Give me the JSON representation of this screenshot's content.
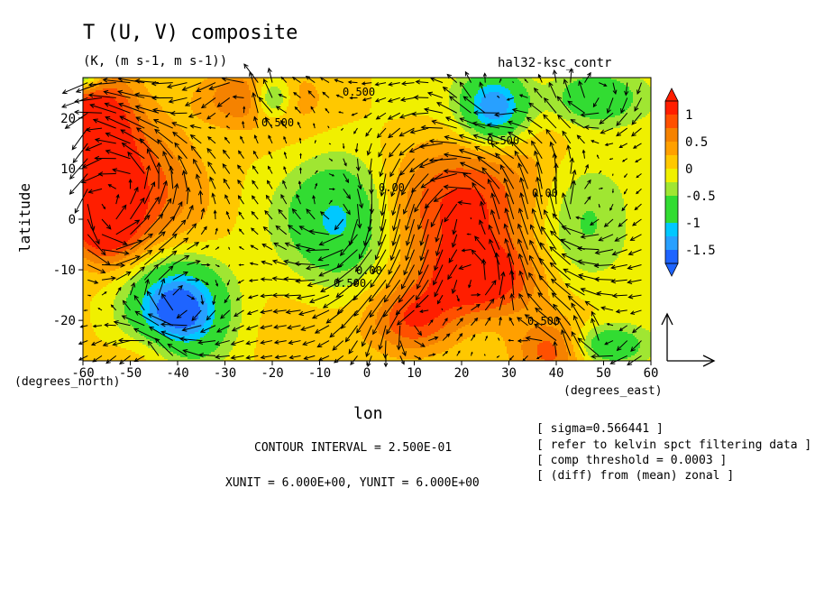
{
  "figure": {
    "title": "T (U, V) composite",
    "subtitle": "(K, (m s-1, m s-1))",
    "run_label": "hal32-ksc_contr",
    "contour_interval": "CONTOUR INTERVAL = 2.500E-01",
    "vector_units": "XUNIT = 6.000E+00, YUNIT = 6.000E+00",
    "notes": [
      "[ sigma=0.566441 ]",
      "[ refer to kelvin spct filtering data ]",
      "[ comp threshold = 0.0003 ]",
      "[ (diff) from (mean) zonal ]"
    ],
    "contour_labels": [
      "0.500",
      "0.500",
      "0.500",
      "0.00",
      "0.00",
      "0.00",
      "0.500",
      "0.500"
    ]
  },
  "chart_data": {
    "type": "heatmap",
    "title": "T (U, V) composite",
    "xlabel": "lon",
    "ylabel": "latitude",
    "x_units": "(degrees_east)",
    "y_units": "(degrees_north)",
    "xlim": [
      -60,
      60
    ],
    "ylim": [
      -28,
      28
    ],
    "xticks": [
      -60,
      -50,
      -40,
      -30,
      -20,
      -10,
      0,
      10,
      20,
      30,
      40,
      50,
      60
    ],
    "xtick_labels": [
      "-60",
      "-50",
      "-40",
      "-30",
      "-20",
      "-10",
      "0",
      "10",
      "20",
      "30",
      "40",
      "50",
      "60"
    ],
    "yticks": [
      -20,
      -10,
      0,
      10,
      20
    ],
    "ytick_labels": [
      "-20",
      "-10",
      "0",
      "10",
      "20"
    ],
    "colorbar": {
      "levels": [
        -1.75,
        -1.5,
        -1.25,
        -1.0,
        -0.75,
        -0.5,
        -0.25,
        0,
        0.25,
        0.5,
        0.75,
        1.0,
        1.25
      ],
      "colors": [
        "#1e64ff",
        "#28a0ff",
        "#00c8ff",
        "#32dc32",
        "#32dc32",
        "#a0e632",
        "#f0f000",
        "#ffc800",
        "#ffa000",
        "#f58200",
        "#ff5000",
        "#ff1e00"
      ],
      "tick_labels": [
        "1",
        "0.5",
        "0",
        "-0.5",
        "-1",
        "-1.5"
      ],
      "tick_values": [
        1,
        0.5,
        0,
        -0.5,
        -1,
        -1.5
      ]
    },
    "features": [
      {
        "name": "warm",
        "lon": 24,
        "lat": -12,
        "amp": 1.2,
        "slon": 8,
        "slat": 5
      },
      {
        "name": "warm",
        "lon": 10,
        "lat": -20,
        "amp": 1.1,
        "slon": 7,
        "slat": 5
      },
      {
        "name": "warm",
        "lon": 22,
        "lat": 3,
        "amp": 1.0,
        "slon": 14,
        "slat": 10
      },
      {
        "name": "warm",
        "lon": -57,
        "lat": 20,
        "amp": 1.2,
        "slon": 6,
        "slat": 7
      },
      {
        "name": "warm",
        "lon": -58,
        "lat": 5,
        "amp": 1.2,
        "slon": 5,
        "slat": 6
      },
      {
        "name": "warm",
        "lon": -55,
        "lat": -2,
        "amp": 0.9,
        "slon": 5,
        "slat": 5
      },
      {
        "name": "warm",
        "lon": -48,
        "lat": 8,
        "amp": 0.8,
        "slon": 9,
        "slat": 10
      },
      {
        "name": "warm",
        "lon": -25,
        "lat": 24,
        "amp": 0.8,
        "slon": 8,
        "slat": 4
      },
      {
        "name": "warm",
        "lon": 40,
        "lat": -26,
        "amp": 0.9,
        "slon": 6,
        "slat": 4
      },
      {
        "name": "warm",
        "lon": -45,
        "lat": -26,
        "amp": 0.6,
        "slon": 6,
        "slat": 4
      },
      {
        "name": "cold",
        "lon": -40,
        "lat": -18,
        "amp": -1.8,
        "slon": 7,
        "slat": 7
      },
      {
        "name": "cold",
        "lon": 27,
        "lat": 22,
        "amp": -1.6,
        "slon": 5,
        "slat": 5
      },
      {
        "name": "cold",
        "lon": 48,
        "lat": 24,
        "amp": -1.0,
        "slon": 7,
        "slat": 4
      },
      {
        "name": "cold",
        "lon": -5,
        "lat": 0,
        "amp": -1.1,
        "slon": 8,
        "slat": 9
      },
      {
        "name": "cold",
        "lon": -20,
        "lat": 24,
        "amp": -1.2,
        "slon": 3,
        "slat": 3
      },
      {
        "name": "cold",
        "lon": 50,
        "lat": -25,
        "amp": -1.1,
        "slon": 6,
        "slat": 3
      },
      {
        "name": "cold",
        "lon": -60,
        "lat": 28,
        "amp": -1.0,
        "slon": 3,
        "slat": 2
      },
      {
        "name": "cold",
        "lon": 45,
        "lat": 0,
        "amp": -0.6,
        "slon": 8,
        "slat": 10
      }
    ],
    "wind_vectors": {
      "grid_spacing_deg": 3,
      "reference_arrow": "vertical reference vector at lon 63, lat -22"
    }
  }
}
